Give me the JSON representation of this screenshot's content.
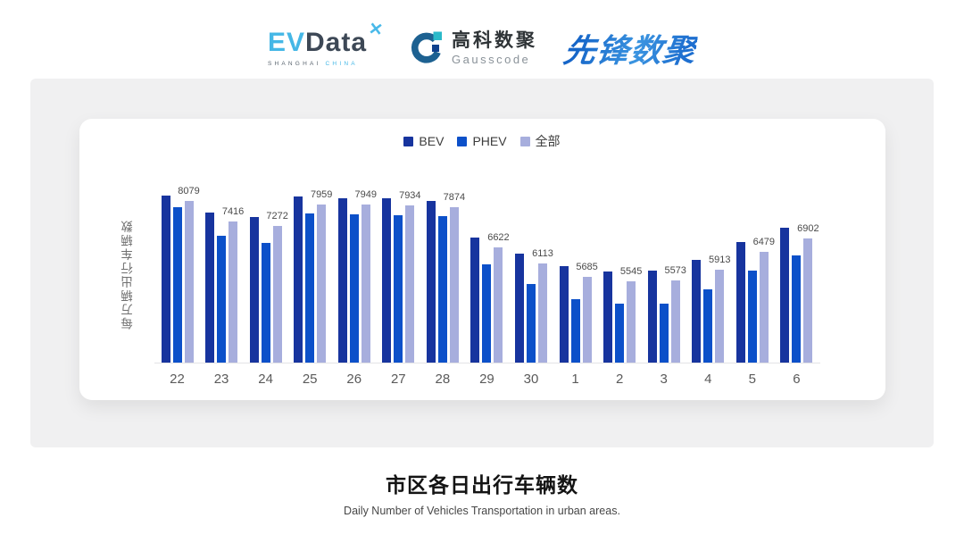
{
  "header": {
    "evdata": {
      "ev": "EV",
      "data": "Data",
      "mark": "✕",
      "sub1": "SHANGHAI",
      "sub2": "CHINA"
    },
    "gausscode": {
      "cn": "高科数聚",
      "en": "Gausscode"
    },
    "pioneer": {
      "text": "先锋数聚"
    }
  },
  "chart_data": {
    "type": "bar",
    "title": "市区各日出行车辆数",
    "subtitle": "Daily Number of Vehicles Transportation in urban areas.",
    "ylabel": "每万辆出行车辆数",
    "xlabel": "",
    "categories": [
      "22",
      "23",
      "24",
      "25",
      "26",
      "27",
      "28",
      "29",
      "30",
      "1",
      "2",
      "3",
      "4",
      "5",
      "6"
    ],
    "series": [
      {
        "name": "BEV",
        "color": "#17349e",
        "values": [
          8250,
          7700,
          7560,
          8200,
          8160,
          8160,
          8070,
          6930,
          6420,
          6020,
          5860,
          5880,
          6210,
          6780,
          7230
        ]
      },
      {
        "name": "PHEV",
        "color": "#0c50c9",
        "values": [
          7880,
          6980,
          6760,
          7670,
          7640,
          7630,
          7580,
          6080,
          5470,
          5000,
          4860,
          4850,
          5300,
          5890,
          6360
        ]
      },
      {
        "name": "全部",
        "color": "#a7aedd",
        "values": [
          8079,
          7416,
          7272,
          7959,
          7949,
          7934,
          7874,
          6622,
          6113,
          5685,
          5545,
          5573,
          5913,
          6479,
          6902
        ]
      }
    ],
    "data_labels": [
      8079,
      7416,
      7272,
      7959,
      7949,
      7934,
      7874,
      6622,
      6113,
      5685,
      5545,
      5573,
      5913,
      6479,
      6902
    ],
    "data_label_series": "全部",
    "ylim": [
      3000,
      8600
    ],
    "grid": false,
    "legend_position": "top"
  },
  "footer": {
    "title": "市区各日出行车辆数",
    "subtitle": "Daily Number of Vehicles Transportation in urban areas."
  },
  "colors": {
    "panel_bg": "#f0f0f1",
    "card_bg": "#ffffff",
    "evdata_blue": "#45b7e6",
    "evdata_dark": "#3d4856",
    "pioneer_blue": "#1e6fd0",
    "axis_line": "#e3e3e6"
  }
}
